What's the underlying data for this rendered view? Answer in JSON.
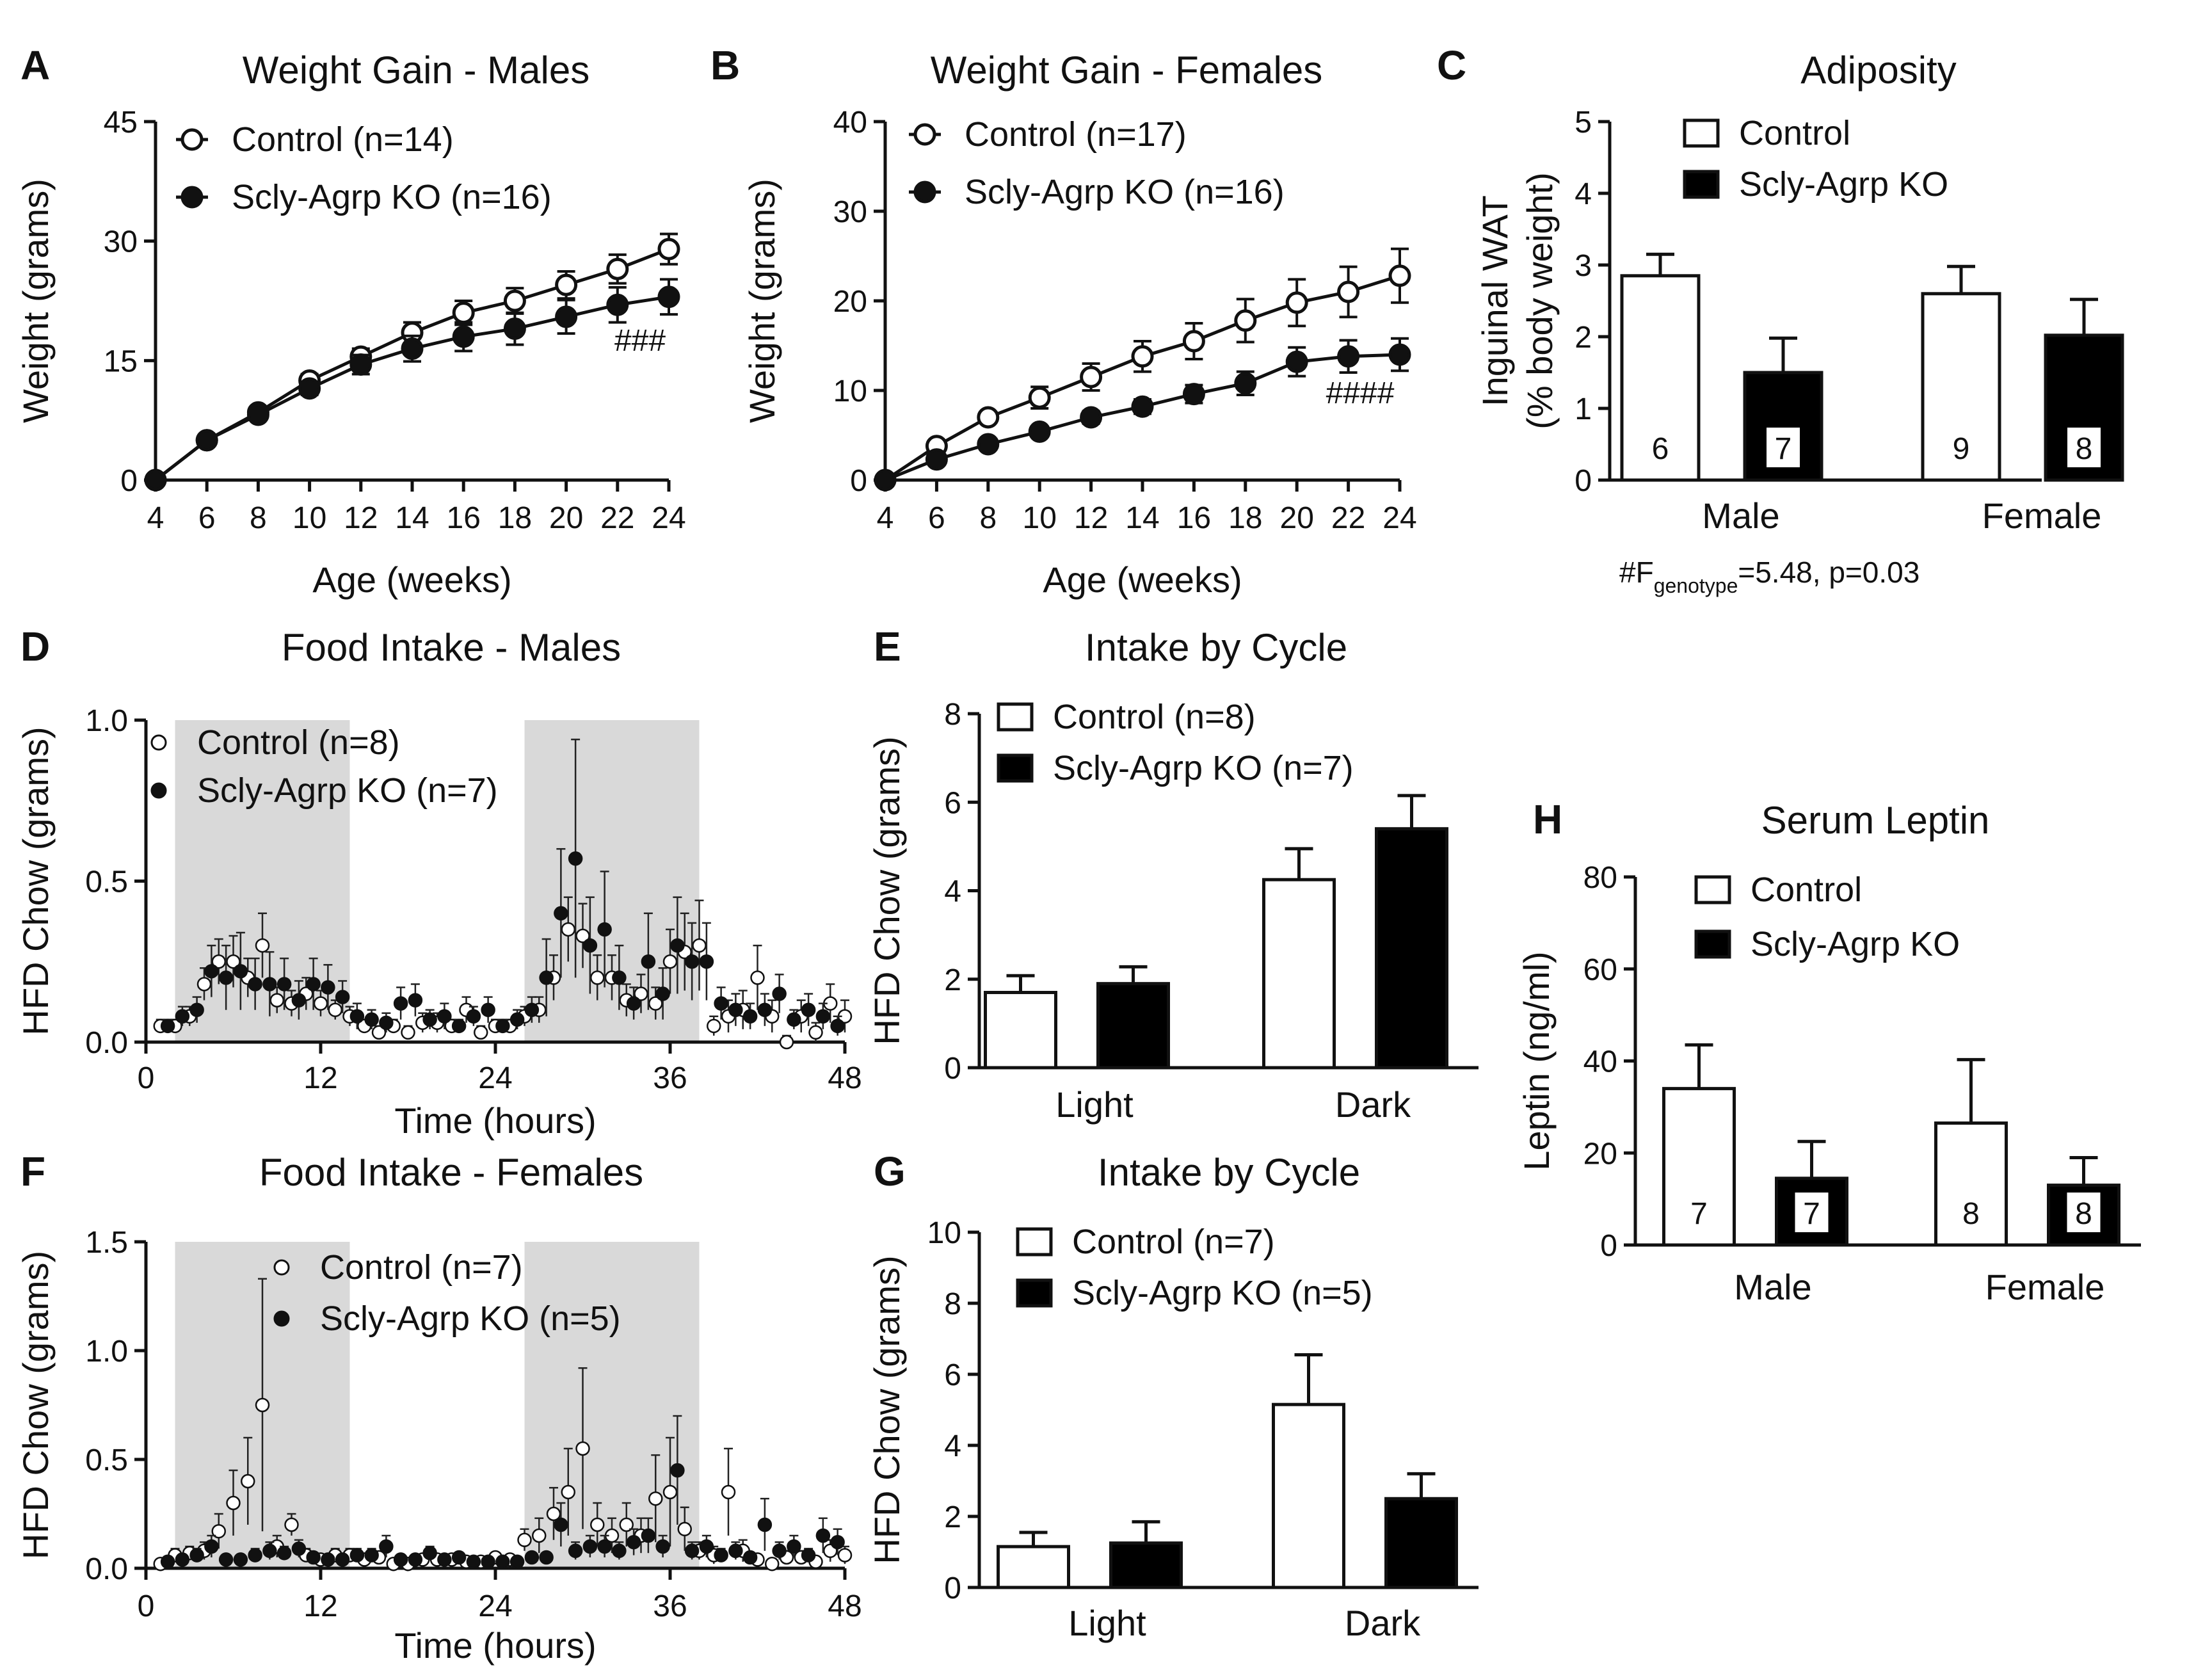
{
  "figure": {
    "stat_note": {
      "symbol": "#F",
      "subscript": "genotype",
      "rest": "=5.48,  p=0.03"
    }
  },
  "chart_data": [
    {
      "id": "A",
      "panel": "A",
      "type": "line",
      "title": "Weight Gain - Males",
      "xlabel": "Age (weeks)",
      "ylabel": "Weight (grams)",
      "ylim": [
        0,
        45
      ],
      "yticks": [
        0,
        15,
        30,
        45
      ],
      "xlim": [
        4,
        24
      ],
      "xticks": [
        4,
        6,
        8,
        10,
        12,
        14,
        16,
        18,
        20,
        22,
        24
      ],
      "x": [
        4,
        6,
        8,
        10,
        12,
        14,
        16,
        18,
        20,
        22,
        24
      ],
      "series": [
        {
          "name": "Control (n=14)",
          "marker": "open",
          "values": [
            0,
            5,
            8.5,
            12.5,
            15.5,
            18.5,
            21,
            22.5,
            24.5,
            26.5,
            29
          ],
          "err": [
            0,
            0.4,
            0.6,
            0.8,
            1,
            1.3,
            1.5,
            1.6,
            1.7,
            1.8,
            1.9
          ]
        },
        {
          "name": "Scly-Agrp KO (n=16)",
          "marker": "filled",
          "values": [
            0,
            5,
            8.2,
            11.5,
            14.5,
            16.5,
            18,
            19,
            20.5,
            22,
            23
          ],
          "err": [
            0,
            0.4,
            0.6,
            0.8,
            1.2,
            1.6,
            1.8,
            2,
            2.1,
            2.2,
            2.2
          ]
        }
      ],
      "annotations": [
        {
          "text": "###",
          "x": 24,
          "y": 17
        }
      ]
    },
    {
      "id": "B",
      "panel": "B",
      "type": "line",
      "title": "Weight Gain - Females",
      "xlabel": "Age (weeks)",
      "ylabel": "Weight (grams)",
      "ylim": [
        0,
        40
      ],
      "yticks": [
        0,
        10,
        20,
        30,
        40
      ],
      "xlim": [
        4,
        24
      ],
      "xticks": [
        4,
        6,
        8,
        10,
        12,
        14,
        16,
        18,
        20,
        22,
        24
      ],
      "x": [
        4,
        6,
        8,
        10,
        12,
        14,
        16,
        18,
        20,
        22,
        24
      ],
      "series": [
        {
          "name": "Control (n=17)",
          "marker": "open",
          "values": [
            0,
            3.8,
            7,
            9.2,
            11.5,
            13.8,
            15.5,
            17.8,
            19.8,
            21,
            22.8
          ],
          "err": [
            0,
            0.4,
            0.6,
            1.2,
            1.5,
            1.7,
            2,
            2.4,
            2.6,
            2.8,
            3
          ]
        },
        {
          "name": "Scly-Agrp KO (n=16)",
          "marker": "filled",
          "values": [
            0,
            2.3,
            4,
            5.4,
            7,
            8.2,
            9.6,
            10.8,
            13.2,
            13.8,
            14
          ],
          "err": [
            0,
            0.3,
            0.4,
            0.5,
            0.7,
            0.8,
            1,
            1.3,
            1.6,
            1.8,
            1.8
          ]
        }
      ],
      "annotations": [
        {
          "text": "####",
          "x": 24,
          "y": 8
        }
      ]
    },
    {
      "id": "C",
      "panel": "C",
      "type": "bar",
      "title": "Adiposity",
      "xlabel": "",
      "ylabel": "Inguinal WAT",
      "ylabel2": "(% body weight)",
      "ylim": [
        0,
        5
      ],
      "yticks": [
        0,
        1,
        2,
        3,
        4,
        5
      ],
      "categories": [
        "Male",
        "Female"
      ],
      "series": [
        {
          "name": "Control",
          "fill": "#ffffff",
          "values": [
            2.85,
            2.6
          ],
          "err": [
            0.3,
            0.38
          ],
          "n": [
            "6",
            "9"
          ]
        },
        {
          "name": "Scly-Agrp KO",
          "fill": "#000000",
          "values": [
            1.5,
            2.02
          ],
          "err": [
            0.48,
            0.5
          ],
          "n": [
            "7",
            "8"
          ]
        }
      ]
    },
    {
      "id": "D",
      "panel": "D",
      "type": "scatter",
      "title": "Food Intake - Males",
      "xlabel": "Time (hours)",
      "ylabel": "HFD Chow (grams)",
      "ylim": [
        0,
        1
      ],
      "yticks": [
        0,
        0.5,
        1
      ],
      "ytick_labels": [
        "0.0",
        "0.5",
        "1.0"
      ],
      "xlim": [
        0,
        48
      ],
      "xticks": [
        0,
        12,
        24,
        36,
        48
      ],
      "dark_periods": [
        [
          2,
          14
        ],
        [
          26,
          38
        ]
      ],
      "series": [
        {
          "name": "Control (n=8)",
          "marker": "open",
          "x": [
            1,
            2,
            3,
            4,
            5,
            6,
            7,
            8,
            9,
            10,
            11,
            12,
            13,
            14,
            15,
            16,
            17,
            18,
            19,
            20,
            21,
            22,
            23,
            24,
            25,
            26,
            27,
            28,
            29,
            30,
            31,
            32,
            33,
            34,
            35,
            36,
            37,
            38,
            39,
            40,
            41,
            42,
            43,
            44,
            45,
            46,
            47,
            48
          ],
          "values": [
            0.05,
            0.05,
            0.08,
            0.18,
            0.25,
            0.25,
            0.2,
            0.3,
            0.13,
            0.12,
            0.15,
            0.12,
            0.1,
            0.08,
            0.05,
            0.03,
            0.05,
            0.03,
            0.06,
            0.06,
            0.05,
            0.1,
            0.03,
            0.05,
            0.05,
            0.08,
            0.1,
            0.2,
            0.35,
            0.33,
            0.2,
            0.2,
            0.13,
            0.15,
            0.12,
            0.25,
            0.28,
            0.3,
            0.05,
            0.08,
            0.1,
            0.2,
            0.08,
            0.0,
            0.08,
            0.03,
            0.12,
            0.08
          ],
          "err": [
            0.02,
            0.02,
            0.03,
            0.05,
            0.07,
            0.08,
            0.06,
            0.1,
            0.04,
            0.04,
            0.05,
            0.04,
            0.03,
            0.03,
            0.02,
            0.02,
            0.02,
            0.02,
            0.03,
            0.03,
            0.02,
            0.04,
            0.02,
            0.02,
            0.02,
            0.03,
            0.04,
            0.07,
            0.1,
            0.1,
            0.07,
            0.07,
            0.05,
            0.06,
            0.05,
            0.1,
            0.12,
            0.14,
            0.03,
            0.05,
            0.06,
            0.1,
            0.05,
            0.02,
            0.05,
            0.03,
            0.06,
            0.05
          ]
        },
        {
          "name": "Scly-Agrp KO (n=7)",
          "marker": "filled",
          "x": [
            1.5,
            2.5,
            3.5,
            4.5,
            5.5,
            6.5,
            7.5,
            8.5,
            9.5,
            10.5,
            11.5,
            12.5,
            13.5,
            14.5,
            15.5,
            16.5,
            17.5,
            18.5,
            19.5,
            20.5,
            21.5,
            22.5,
            23.5,
            24.5,
            25.5,
            26.5,
            27.5,
            28.5,
            29.5,
            30.5,
            31.5,
            32.5,
            33.5,
            34.5,
            35.5,
            36.5,
            37.5,
            38.5,
            39.5,
            40.5,
            41.5,
            42.5,
            43.5,
            44.5,
            45.5,
            46.5,
            47.5
          ],
          "values": [
            0.05,
            0.08,
            0.1,
            0.22,
            0.2,
            0.22,
            0.18,
            0.18,
            0.18,
            0.13,
            0.18,
            0.17,
            0.14,
            0.08,
            0.07,
            0.06,
            0.12,
            0.13,
            0.07,
            0.08,
            0.05,
            0.08,
            0.1,
            0.05,
            0.07,
            0.1,
            0.2,
            0.4,
            0.57,
            0.3,
            0.35,
            0.2,
            0.12,
            0.25,
            0.15,
            0.3,
            0.25,
            0.25,
            0.12,
            0.1,
            0.08,
            0.1,
            0.15,
            0.07,
            0.1,
            0.08,
            0.05
          ],
          "err": [
            0.02,
            0.03,
            0.04,
            0.08,
            0.1,
            0.12,
            0.08,
            0.1,
            0.08,
            0.06,
            0.08,
            0.07,
            0.05,
            0.04,
            0.03,
            0.03,
            0.05,
            0.05,
            0.03,
            0.04,
            0.02,
            0.03,
            0.04,
            0.02,
            0.03,
            0.04,
            0.12,
            0.2,
            0.37,
            0.15,
            0.18,
            0.1,
            0.05,
            0.15,
            0.08,
            0.15,
            0.12,
            0.12,
            0.05,
            0.05,
            0.04,
            0.05,
            0.06,
            0.03,
            0.05,
            0.04,
            0.03
          ]
        }
      ]
    },
    {
      "id": "E",
      "panel": "E",
      "type": "bar",
      "title": "Intake by Cycle",
      "xlabel": "",
      "ylabel": "HFD Chow (grams)",
      "ylim": [
        0,
        8
      ],
      "yticks": [
        0,
        2,
        4,
        6,
        8
      ],
      "categories": [
        "Light",
        "Dark"
      ],
      "series": [
        {
          "name": "Control (n=8)",
          "fill": "#ffffff",
          "values": [
            1.7,
            4.25
          ],
          "err": [
            0.38,
            0.7
          ]
        },
        {
          "name": "Scly-Agrp  KO (n=7)",
          "fill": "#000000",
          "values": [
            1.9,
            5.4
          ],
          "err": [
            0.38,
            0.75
          ]
        }
      ]
    },
    {
      "id": "F",
      "panel": "F",
      "type": "scatter",
      "title": "Food Intake - Females",
      "xlabel": "Time (hours)",
      "ylabel": "HFD Chow (grams)",
      "ylim": [
        0,
        1.5
      ],
      "yticks": [
        0,
        0.5,
        1,
        1.5
      ],
      "ytick_labels": [
        "0.0",
        "0.5",
        "1.0",
        "1.5"
      ],
      "xlim": [
        0,
        48
      ],
      "xticks": [
        0,
        12,
        24,
        36,
        48
      ],
      "dark_periods": [
        [
          2,
          14
        ],
        [
          26,
          38
        ]
      ],
      "series": [
        {
          "name": "Control (n=7)",
          "marker": "open",
          "x": [
            1,
            2,
            3,
            4,
            5,
            6,
            7,
            8,
            9,
            10,
            11,
            12,
            13,
            14,
            15,
            16,
            17,
            18,
            19,
            20,
            21,
            22,
            23,
            24,
            25,
            26,
            27,
            28,
            29,
            30,
            31,
            32,
            33,
            34,
            35,
            36,
            37,
            38,
            39,
            40,
            41,
            42,
            43,
            44,
            45,
            46,
            47,
            48
          ],
          "values": [
            0.02,
            0.06,
            0.07,
            0.08,
            0.17,
            0.3,
            0.4,
            0.75,
            0.1,
            0.2,
            0.06,
            0.04,
            0.06,
            0.06,
            0.04,
            0.05,
            0.02,
            0.02,
            0.04,
            0.04,
            0.04,
            0.03,
            0.03,
            0.05,
            0.04,
            0.13,
            0.15,
            0.25,
            0.35,
            0.55,
            0.2,
            0.15,
            0.2,
            0.15,
            0.32,
            0.35,
            0.18,
            0.08,
            0.06,
            0.35,
            0.08,
            0.04,
            0.02,
            0.05,
            0.05,
            0.03,
            0.08,
            0.06
          ],
          "err": [
            0.01,
            0.03,
            0.03,
            0.04,
            0.08,
            0.15,
            0.2,
            0.58,
            0.05,
            0.05,
            0.03,
            0.02,
            0.03,
            0.03,
            0.02,
            0.02,
            0.01,
            0.01,
            0.02,
            0.02,
            0.02,
            0.02,
            0.02,
            0.02,
            0.02,
            0.05,
            0.08,
            0.12,
            0.2,
            0.37,
            0.1,
            0.08,
            0.1,
            0.08,
            0.2,
            0.25,
            0.1,
            0.04,
            0.04,
            0.2,
            0.05,
            0.02,
            0.01,
            0.03,
            0.03,
            0.02,
            0.05,
            0.04
          ]
        },
        {
          "name": "Scly-Agrp KO (n=5)",
          "marker": "filled",
          "x": [
            1.5,
            2.5,
            3.5,
            4.5,
            5.5,
            6.5,
            7.5,
            8.5,
            9.5,
            10.5,
            11.5,
            12.5,
            13.5,
            14.5,
            15.5,
            16.5,
            17.5,
            18.5,
            19.5,
            20.5,
            21.5,
            22.5,
            23.5,
            24.5,
            25.5,
            26.5,
            27.5,
            28.5,
            29.5,
            30.5,
            31.5,
            32.5,
            33.5,
            34.5,
            35.5,
            36.5,
            37.5,
            38.5,
            39.5,
            40.5,
            41.5,
            42.5,
            43.5,
            44.5,
            45.5,
            46.5,
            47.5
          ],
          "values": [
            0.03,
            0.04,
            0.06,
            0.1,
            0.04,
            0.04,
            0.06,
            0.08,
            0.07,
            0.09,
            0.05,
            0.04,
            0.04,
            0.06,
            0.06,
            0.1,
            0.04,
            0.04,
            0.07,
            0.04,
            0.05,
            0.03,
            0.03,
            0.03,
            0.03,
            0.05,
            0.05,
            0.2,
            0.08,
            0.1,
            0.1,
            0.08,
            0.12,
            0.15,
            0.1,
            0.45,
            0.08,
            0.1,
            0.06,
            0.08,
            0.05,
            0.2,
            0.08,
            0.1,
            0.06,
            0.15,
            0.12
          ],
          "err": [
            0.01,
            0.02,
            0.03,
            0.05,
            0.02,
            0.02,
            0.03,
            0.04,
            0.03,
            0.04,
            0.02,
            0.02,
            0.02,
            0.03,
            0.03,
            0.05,
            0.02,
            0.02,
            0.03,
            0.02,
            0.02,
            0.01,
            0.01,
            0.01,
            0.01,
            0.02,
            0.02,
            0.1,
            0.04,
            0.05,
            0.05,
            0.04,
            0.06,
            0.08,
            0.05,
            0.25,
            0.04,
            0.05,
            0.03,
            0.04,
            0.02,
            0.12,
            0.04,
            0.05,
            0.03,
            0.08,
            0.06
          ]
        }
      ]
    },
    {
      "id": "G",
      "panel": "G",
      "type": "bar",
      "title": "Intake by Cycle",
      "xlabel": "",
      "ylabel": "HFD Chow (grams)",
      "ylim": [
        0,
        10
      ],
      "yticks": [
        0,
        2,
        4,
        6,
        8,
        10
      ],
      "categories": [
        "Light",
        "Dark"
      ],
      "series": [
        {
          "name": "Control (n=7)",
          "fill": "#ffffff",
          "values": [
            1.15,
            5.15
          ],
          "err": [
            0.4,
            1.4
          ]
        },
        {
          "name": "Scly-Agrp KO (n=5)",
          "fill": "#000000",
          "values": [
            1.25,
            2.5
          ],
          "err": [
            0.6,
            0.7
          ]
        }
      ]
    },
    {
      "id": "H",
      "panel": "H",
      "type": "bar",
      "title": "Serum Leptin",
      "xlabel": "",
      "ylabel": "Leptin (ng/ml)",
      "ylim": [
        0,
        80
      ],
      "yticks": [
        0,
        20,
        40,
        60,
        80
      ],
      "categories": [
        "Male",
        "Female"
      ],
      "series": [
        {
          "name": "Control",
          "fill": "#ffffff",
          "values": [
            34,
            26.5
          ],
          "err": [
            9.5,
            13.8
          ],
          "n": [
            "7",
            "8"
          ]
        },
        {
          "name": "Scly-Agrp KO",
          "fill": "#000000",
          "values": [
            14.5,
            13
          ],
          "err": [
            8,
            6
          ]
        }
      ],
      "n_labels": [
        [
          "7",
          "8"
        ],
        [
          "7",
          "8"
        ]
      ]
    }
  ]
}
